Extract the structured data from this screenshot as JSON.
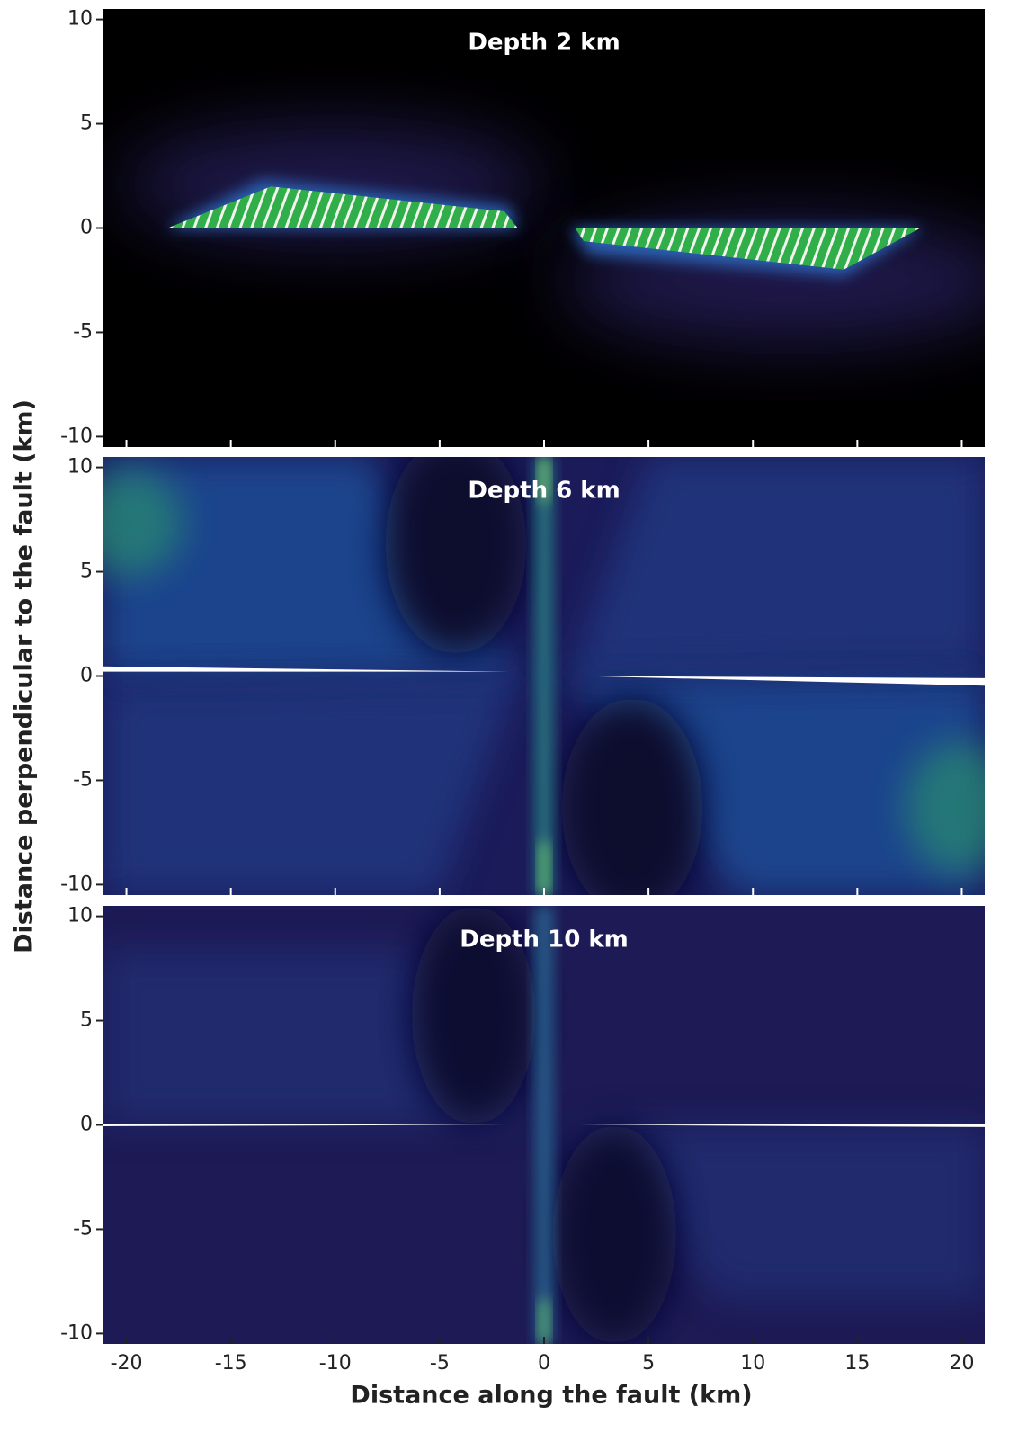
{
  "chart_data": [
    {
      "type": "heatmap",
      "title": "Depth 2 km",
      "xlim": [
        -21.1,
        21.1
      ],
      "ylim": [
        -10.5,
        10.5
      ],
      "xticks": [
        -20,
        -15,
        -10,
        -5,
        0,
        5,
        10,
        15,
        20
      ],
      "yticks": [
        -10,
        -5,
        0,
        5,
        10
      ],
      "style": "shallow"
    },
    {
      "type": "heatmap",
      "title": "Depth 6 km",
      "xlim": [
        -21.1,
        21.1
      ],
      "ylim": [
        -10.5,
        10.5
      ],
      "xticks": [
        -20,
        -15,
        -10,
        -5,
        0,
        5,
        10,
        15,
        20
      ],
      "yticks": [
        -10,
        -5,
        0,
        5,
        10
      ],
      "style": "mid",
      "ylabel": "Distance perpendicular to the fault (km)"
    },
    {
      "type": "heatmap",
      "title": "Depth 10 km",
      "xlim": [
        -21.1,
        21.1
      ],
      "ylim": [
        -10.5,
        10.5
      ],
      "xticks": [
        -20,
        -15,
        -10,
        -5,
        0,
        5,
        10,
        15,
        20
      ],
      "yticks": [
        -10,
        -5,
        0,
        5,
        10
      ],
      "style": "deep",
      "xlabel": "Distance along the fault (km)"
    }
  ]
}
